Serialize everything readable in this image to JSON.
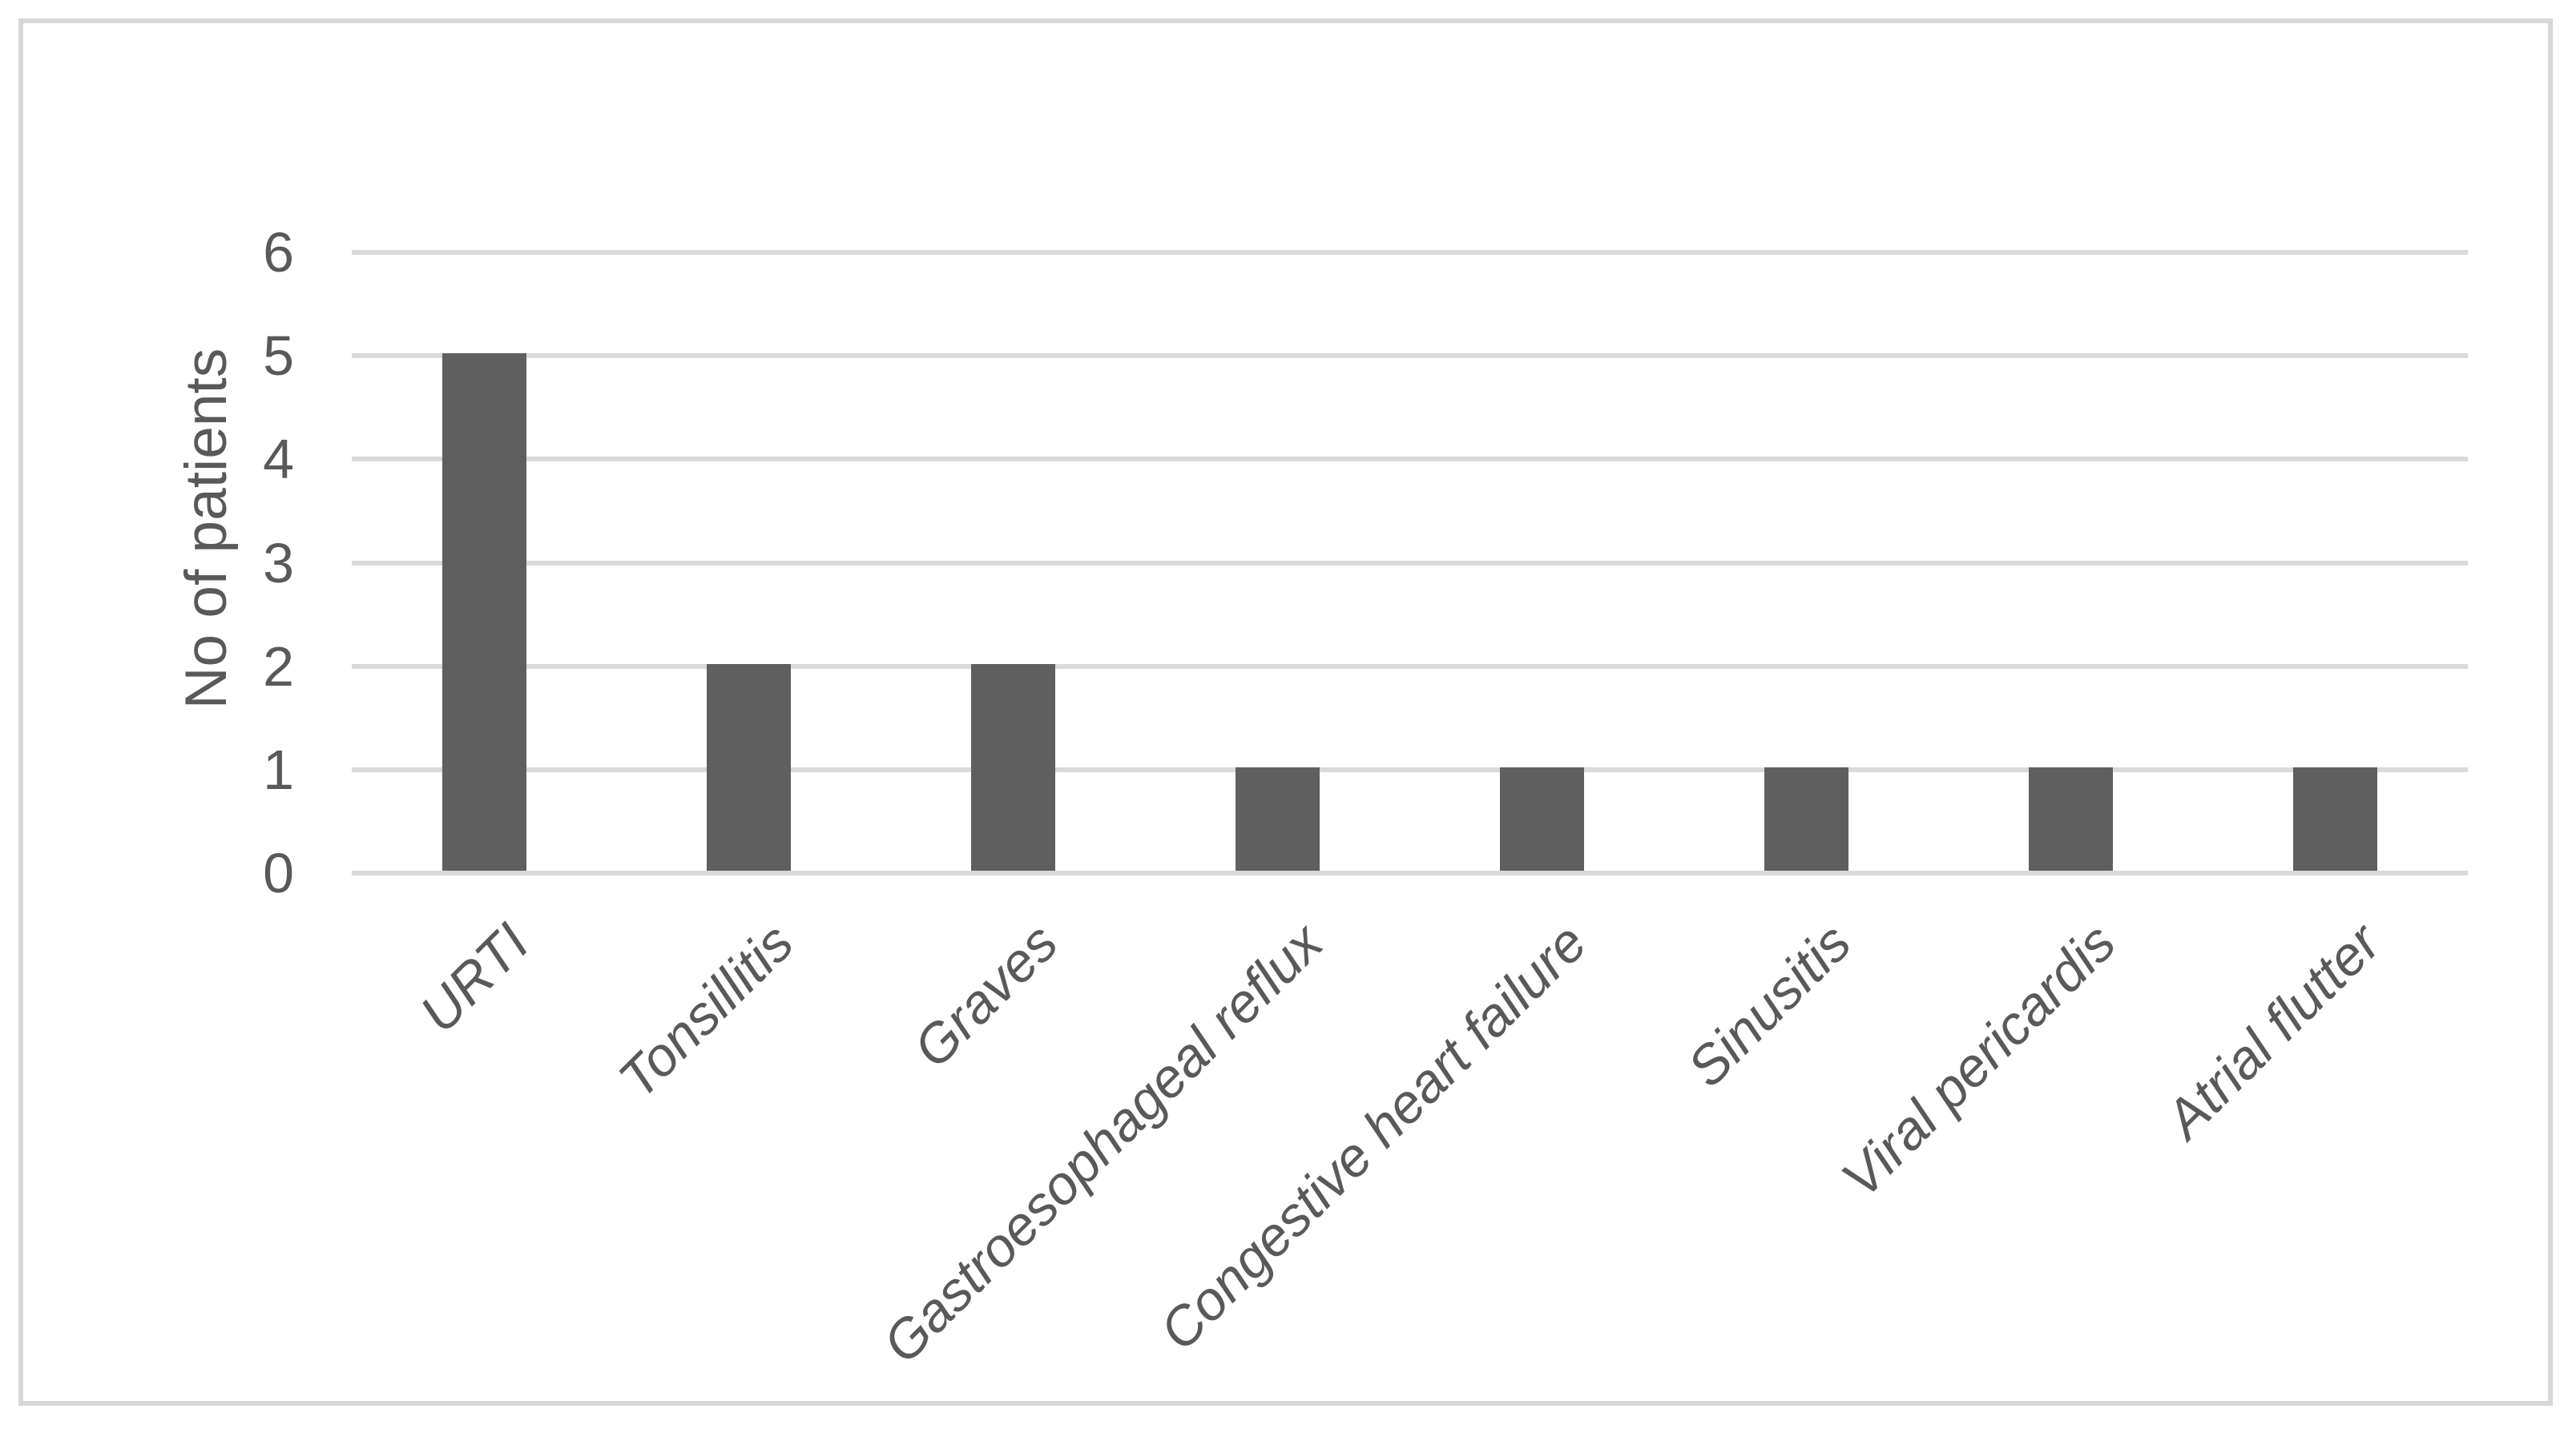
{
  "chart_data": {
    "type": "bar",
    "categories": [
      "URTI",
      "Tonsillitis",
      "Graves",
      "Gastroesophageal reflux",
      "Congestive heart failure",
      "Sinusitis",
      "Viral pericardis",
      "Atrial flutter"
    ],
    "values": [
      5,
      2,
      2,
      1,
      1,
      1,
      1,
      1
    ],
    "title": "",
    "xlabel": "",
    "ylabel": "No of patients",
    "ylim": [
      0,
      6
    ],
    "yticks": [
      0,
      1,
      2,
      3,
      4,
      5,
      6
    ],
    "grid": true,
    "legend": false,
    "x_label_style": "italic, rotated 45 degrees",
    "colors": {
      "bar": "#5f5f5f",
      "gridline": "#d9d9d9",
      "text": "#595959",
      "frame_border": "#d7d7d7",
      "background": "#ffffff"
    }
  }
}
